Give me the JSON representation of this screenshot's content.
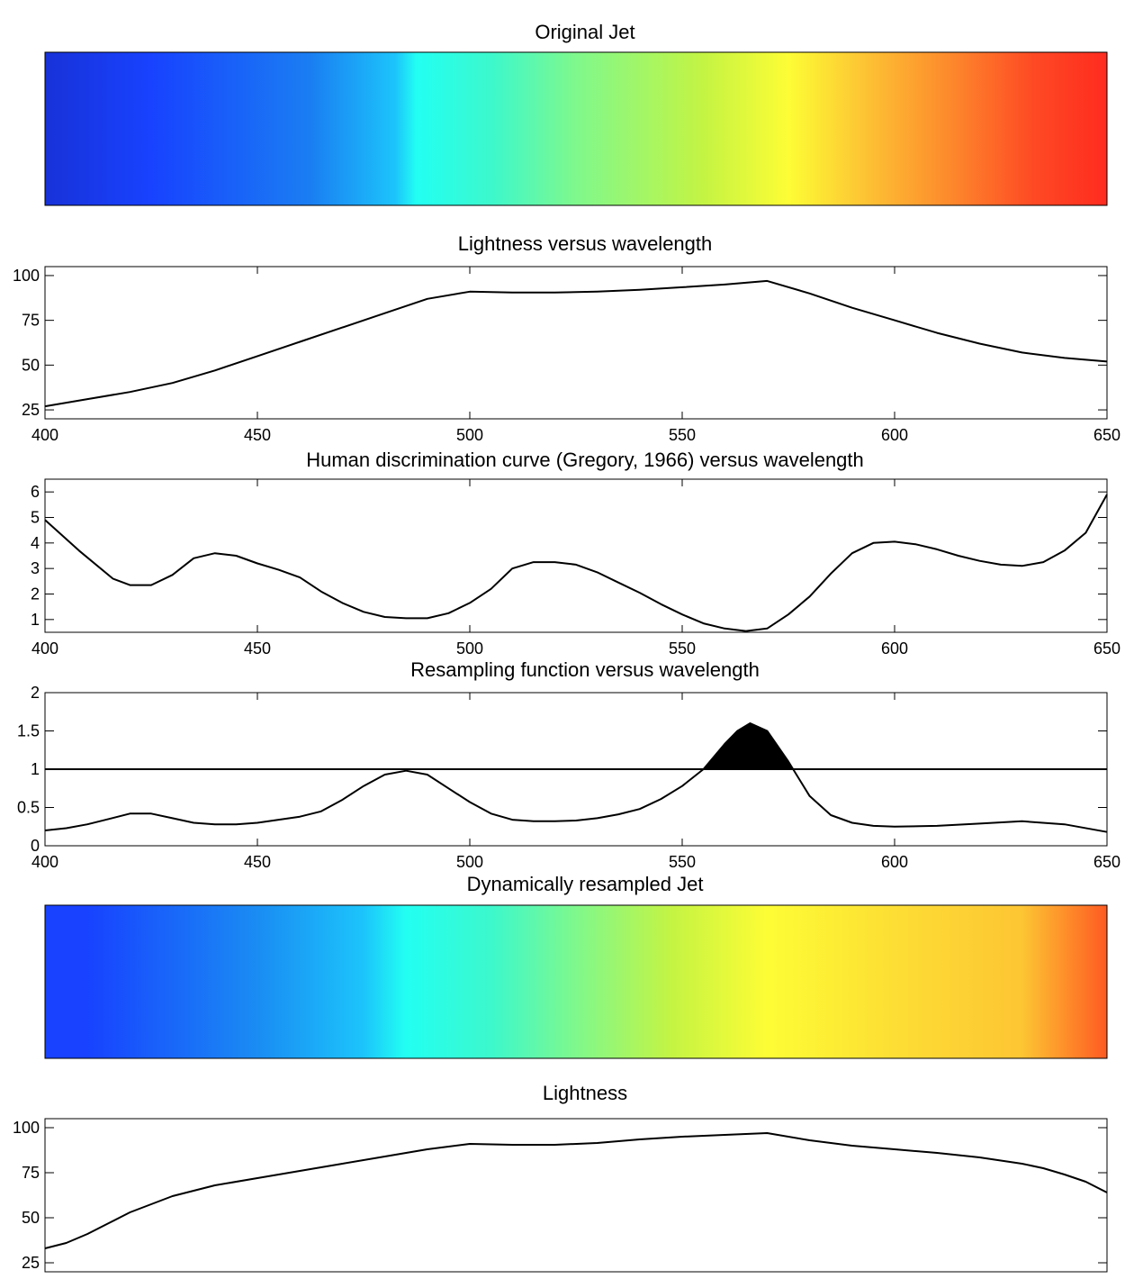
{
  "chart_data": [
    {
      "type": "colorbar",
      "title": "Original Jet",
      "colors": [
        "#1832d8",
        "#1842ff",
        "#1a7ef2",
        "#1cc4fb",
        "#22fff2",
        "#3cf8cc",
        "#7ff88c",
        "#c4f443",
        "#fdfd35",
        "#fdbd33",
        "#fd8b2c",
        "#fe4a24",
        "#ff2b1f"
      ],
      "stops": [
        0,
        0.1,
        0.25,
        0.33,
        0.35,
        0.42,
        0.5,
        0.62,
        0.7,
        0.78,
        0.85,
        0.93,
        1
      ]
    },
    {
      "type": "line",
      "title": "Lightness versus wavelength",
      "xlim": [
        400,
        650
      ],
      "ylim": [
        20,
        105
      ],
      "xticks": [
        400,
        450,
        500,
        550,
        600,
        650
      ],
      "yticks": [
        25,
        50,
        75,
        100
      ],
      "x": [
        400,
        410,
        420,
        430,
        440,
        450,
        460,
        470,
        480,
        490,
        500,
        510,
        520,
        530,
        540,
        550,
        560,
        570,
        580,
        590,
        600,
        610,
        620,
        630,
        640,
        650
      ],
      "y": [
        27,
        31,
        35,
        40,
        47,
        55,
        63,
        71,
        79,
        87,
        91,
        90.5,
        90.5,
        91,
        92,
        93.5,
        95,
        97,
        90,
        82,
        75,
        68,
        62,
        57,
        54,
        52
      ]
    },
    {
      "type": "line",
      "title": "Human discrimination curve (Gregory, 1966) versus wavelength",
      "xlim": [
        400,
        650
      ],
      "ylim": [
        0.5,
        6.5
      ],
      "xticks": [
        400,
        450,
        500,
        550,
        600,
        650
      ],
      "yticks": [
        1,
        2,
        3,
        4,
        5,
        6
      ],
      "x": [
        400,
        408,
        416,
        420,
        425,
        430,
        435,
        440,
        445,
        450,
        455,
        460,
        465,
        470,
        475,
        480,
        485,
        490,
        495,
        500,
        505,
        510,
        515,
        520,
        525,
        530,
        535,
        540,
        545,
        550,
        555,
        560,
        565,
        570,
        575,
        580,
        585,
        590,
        595,
        600,
        605,
        610,
        615,
        620,
        625,
        630,
        635,
        640,
        645,
        650
      ],
      "y": [
        4.9,
        3.7,
        2.6,
        2.35,
        2.35,
        2.75,
        3.4,
        3.6,
        3.5,
        3.2,
        2.95,
        2.65,
        2.1,
        1.65,
        1.3,
        1.1,
        1.05,
        1.05,
        1.25,
        1.65,
        2.2,
        3.0,
        3.25,
        3.25,
        3.15,
        2.85,
        2.45,
        2.05,
        1.6,
        1.2,
        0.85,
        0.65,
        0.55,
        0.65,
        1.2,
        1.9,
        2.8,
        3.6,
        4.0,
        4.05,
        3.95,
        3.75,
        3.5,
        3.3,
        3.15,
        3.1,
        3.25,
        3.7,
        4.4,
        5.9
      ]
    },
    {
      "type": "area",
      "title": "Resampling function versus wavelength",
      "xlim": [
        400,
        650
      ],
      "ylim": [
        0,
        2
      ],
      "xticks": [
        400,
        450,
        500,
        550,
        600,
        650
      ],
      "yticks": [
        0,
        0.5,
        1,
        1.5,
        2
      ],
      "ytick_labels": [
        "0",
        "0.5",
        "1",
        "1.5",
        "2"
      ],
      "reference_line": 1,
      "x": [
        400,
        405,
        410,
        415,
        420,
        425,
        430,
        435,
        440,
        445,
        450,
        455,
        460,
        465,
        470,
        475,
        480,
        485,
        490,
        495,
        500,
        505,
        510,
        515,
        520,
        525,
        530,
        535,
        540,
        545,
        550,
        555,
        560,
        563,
        566,
        570,
        575,
        580,
        585,
        590,
        595,
        600,
        610,
        620,
        630,
        640,
        650
      ],
      "y": [
        0.2,
        0.23,
        0.28,
        0.35,
        0.42,
        0.42,
        0.36,
        0.3,
        0.28,
        0.28,
        0.3,
        0.34,
        0.38,
        0.45,
        0.6,
        0.78,
        0.93,
        0.98,
        0.93,
        0.75,
        0.57,
        0.42,
        0.34,
        0.32,
        0.32,
        0.33,
        0.36,
        0.41,
        0.48,
        0.61,
        0.78,
        1.0,
        1.33,
        1.5,
        1.6,
        1.5,
        1.1,
        0.65,
        0.4,
        0.3,
        0.26,
        0.25,
        0.26,
        0.29,
        0.32,
        0.28,
        0.18
      ]
    },
    {
      "type": "colorbar",
      "title": "Dynamically resampled Jet",
      "colors": [
        "#1842ff",
        "#1842ff",
        "#1a8cf3",
        "#1cc4fb",
        "#22fff2",
        "#3cf8cc",
        "#7ff88c",
        "#c4f443",
        "#fdfd35",
        "#fdde34",
        "#fdc533",
        "#fe5a22"
      ],
      "stops": [
        0,
        0.04,
        0.2,
        0.3,
        0.34,
        0.42,
        0.5,
        0.59,
        0.68,
        0.8,
        0.92,
        1
      ]
    },
    {
      "type": "line",
      "title": "Lightness",
      "xlim": [
        400,
        650
      ],
      "ylim": [
        20,
        105
      ],
      "yticks": [
        25,
        50,
        75,
        100
      ],
      "x": [
        400,
        405,
        410,
        415,
        420,
        430,
        440,
        450,
        460,
        470,
        480,
        490,
        500,
        510,
        520,
        530,
        540,
        550,
        560,
        570,
        580,
        590,
        600,
        610,
        620,
        630,
        635,
        640,
        645,
        650
      ],
      "y": [
        33,
        36,
        41,
        47,
        53,
        62,
        68,
        72,
        76,
        80,
        84,
        88,
        91,
        90.5,
        90.5,
        91.5,
        93.5,
        95,
        96,
        97,
        93,
        90,
        88,
        86,
        83.5,
        80,
        77.5,
        74,
        70,
        64
      ]
    }
  ]
}
